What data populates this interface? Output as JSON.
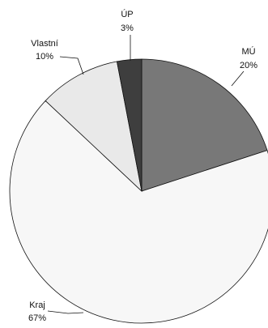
{
  "chart_data": {
    "type": "pie",
    "start": "12 o'clock",
    "direction": "clockwise",
    "slices": [
      {
        "label": "MÚ",
        "value_label": "20%",
        "value": 20,
        "color": "#787878"
      },
      {
        "label": "Kraj",
        "value_label": "67%",
        "value": 67,
        "color": "#f7f7f7"
      },
      {
        "label": "Vlastní",
        "value_label": "10%",
        "value": 10,
        "color": "#e9e9e9"
      },
      {
        "label": "ÚP",
        "value_label": "3%",
        "value": 3,
        "color": "#3e3e3e"
      }
    ],
    "border_color": "#111111",
    "legend": "none"
  }
}
